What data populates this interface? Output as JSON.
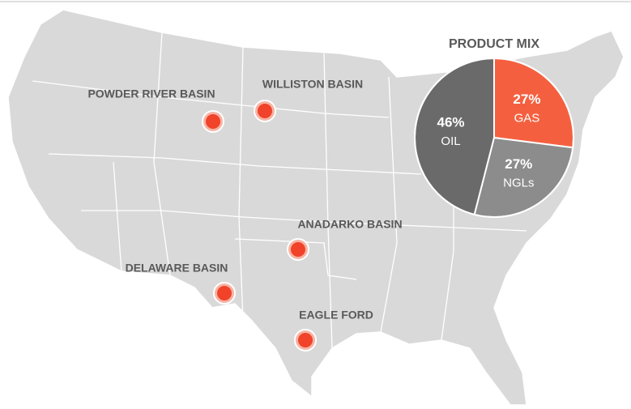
{
  "basins": [
    {
      "label": "POWDER RIVER BASIN"
    },
    {
      "label": "WILLISTON BASIN"
    },
    {
      "label": "ANADARKO BASIN"
    },
    {
      "label": "DELAWARE BASIN"
    },
    {
      "label": "EAGLE FORD"
    }
  ],
  "chart_data": {
    "type": "pie",
    "title": "PRODUCT MIX",
    "categories": [
      "GAS",
      "NGLs",
      "OIL"
    ],
    "values": [
      27,
      27,
      46
    ],
    "value_labels": [
      "27%",
      "27%",
      "46%"
    ],
    "colors": [
      "#f4603f",
      "#8c8c8c",
      "#6a6a6a"
    ]
  }
}
